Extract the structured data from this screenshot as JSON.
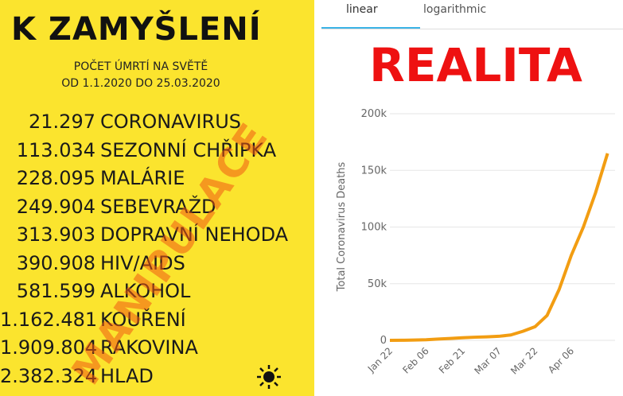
{
  "poster": {
    "title": "K ZAMYŠLENÍ",
    "subtitle": [
      "POČET ÚMRTÍ NA SVĚTĚ",
      "OD 1.1.2020 DO 25.03.2020"
    ],
    "rows": [
      [
        "21.297",
        "CORONAVIRUS"
      ],
      [
        "113.034",
        "SEZONNÍ CHŘIPKA"
      ],
      [
        "228.095",
        "MALÁRIE"
      ],
      [
        "249.904",
        "SEBEVRAŽD"
      ],
      [
        "313.903",
        "DOPRAVNÍ NEHODA"
      ],
      [
        "390.908",
        "HIV/AIDS"
      ],
      [
        "581.599",
        "ALKOHOL"
      ],
      [
        "1.162.481",
        "KOUŘENÍ"
      ],
      [
        "1.909.804",
        "RAKOVINA"
      ],
      [
        "2.382.324",
        "HLAD"
      ]
    ],
    "stamp": "MANIPULACE"
  },
  "tabs": [
    "linear",
    "logarithmic"
  ],
  "overlay": "REALITA",
  "chart_data": {
    "type": "line",
    "y_label": "Total Coronavirus Deaths",
    "categories": [
      "Jan 22",
      null,
      null,
      "Feb 06",
      null,
      null,
      "Feb 21",
      null,
      null,
      "Mar 07",
      null,
      null,
      "Mar 22",
      null,
      null,
      "Apr 06",
      null,
      null,
      null
    ],
    "series": [
      {
        "name": "Total Coronavirus Deaths",
        "color": "#f29d12",
        "values": [
          17,
          82,
          259,
          565,
          1113,
          1666,
          2247,
          2763,
          3085,
          3557,
          4720,
          7978,
          12000,
          22000,
          45000,
          75000,
          100000,
          130000,
          165000
        ]
      }
    ],
    "ylim": [
      0,
      200000
    ],
    "yticks": [
      0,
      {
        "value": 50000,
        "label": "50k"
      },
      {
        "value": 100000,
        "label": "100k"
      },
      {
        "value": 150000,
        "label": "150k"
      },
      {
        "value": 200000,
        "label": "200k"
      }
    ],
    "grid": true
  }
}
